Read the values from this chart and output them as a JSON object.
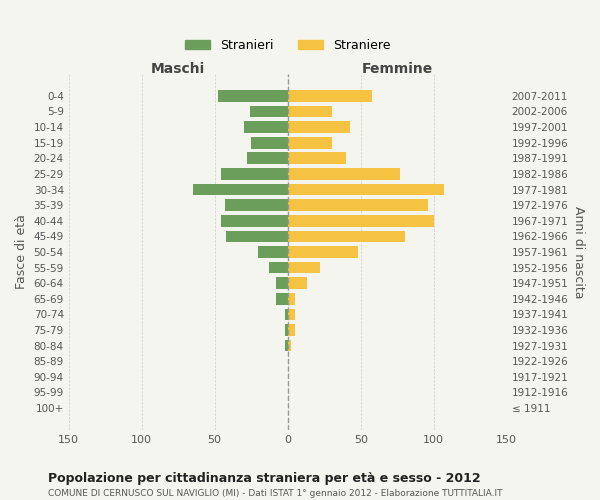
{
  "age_groups": [
    "100+",
    "95-99",
    "90-94",
    "85-89",
    "80-84",
    "75-79",
    "70-74",
    "65-69",
    "60-64",
    "55-59",
    "50-54",
    "45-49",
    "40-44",
    "35-39",
    "30-34",
    "25-29",
    "20-24",
    "15-19",
    "10-14",
    "5-9",
    "0-4"
  ],
  "birth_years": [
    "≤ 1911",
    "1912-1916",
    "1917-1921",
    "1922-1926",
    "1927-1931",
    "1932-1936",
    "1937-1941",
    "1942-1946",
    "1947-1951",
    "1952-1956",
    "1957-1961",
    "1962-1966",
    "1967-1971",
    "1972-1976",
    "1977-1981",
    "1982-1986",
    "1987-1991",
    "1992-1996",
    "1997-2001",
    "2002-2006",
    "2007-2011"
  ],
  "maschi": [
    0,
    0,
    0,
    0,
    2,
    2,
    2,
    8,
    8,
    13,
    20,
    42,
    46,
    43,
    65,
    46,
    28,
    25,
    30,
    26,
    48
  ],
  "femmine": [
    0,
    0,
    0,
    0,
    2,
    5,
    5,
    5,
    13,
    22,
    48,
    80,
    100,
    96,
    107,
    77,
    40,
    30,
    43,
    30,
    58
  ],
  "color_maschi": "#6a9e5a",
  "color_femmine": "#f5c242",
  "title": "Popolazione per cittadinanza straniera per età e sesso - 2012",
  "subtitle": "COMUNE DI CERNUSCO SUL NAVIGLIO (MI) - Dati ISTAT 1° gennaio 2012 - Elaborazione TUTTITALIA.IT",
  "xlabel_left": "Maschi",
  "xlabel_right": "Femmine",
  "ylabel_left": "Fasce di età",
  "ylabel_right": "Anni di nascita",
  "legend_maschi": "Stranieri",
  "legend_femmine": "Straniere",
  "xlim": 150,
  "background_color": "#f5f5f0",
  "grid_color": "#cccccc"
}
